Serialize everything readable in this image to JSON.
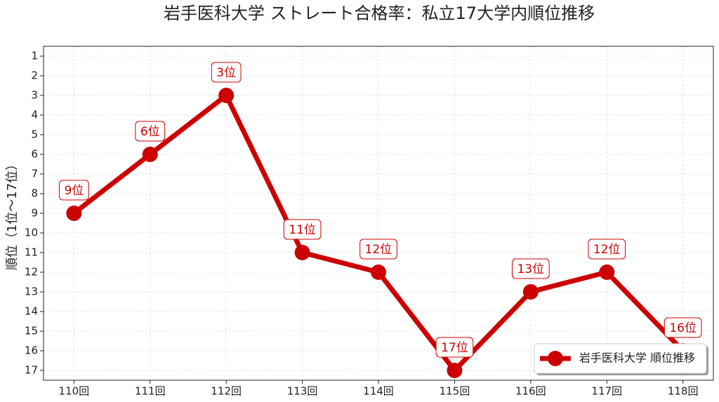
{
  "chart_data": {
    "type": "line",
    "title": "岩手医科大学 ストレート合格率：私立17大学内順位推移",
    "y_label": "順位（1位～17位）",
    "categories": [
      "110回",
      "111回",
      "112回",
      "113回",
      "114回",
      "115回",
      "116回",
      "117回",
      "118回"
    ],
    "series": [
      {
        "name": "岩手医科大学 順位推移",
        "color": "#cc0000",
        "values": [
          9,
          6,
          3,
          11,
          12,
          17,
          13,
          12,
          16
        ],
        "value_labels": [
          "9位",
          "6位",
          "3位",
          "11位",
          "12位",
          "17位",
          "13位",
          "12位",
          "16位"
        ]
      }
    ],
    "ylim": [
      17.5,
      0.5
    ],
    "yticks": [
      1,
      2,
      3,
      4,
      5,
      6,
      7,
      8,
      9,
      10,
      11,
      12,
      13,
      14,
      15,
      16,
      17
    ],
    "grid": true,
    "legend": "lower right"
  }
}
